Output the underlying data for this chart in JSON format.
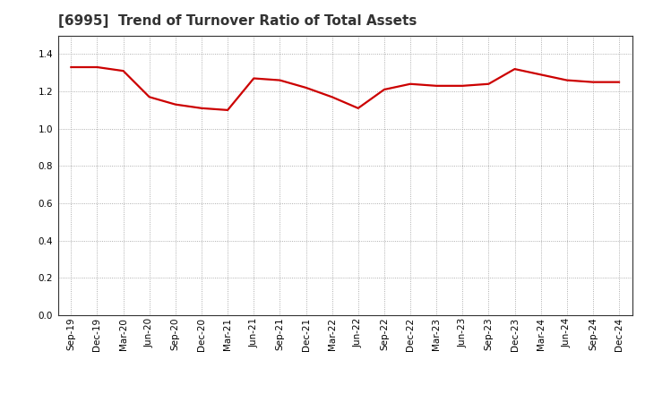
{
  "title": "[6995]  Trend of Turnover Ratio of Total Assets",
  "x_labels": [
    "Sep-19",
    "Dec-19",
    "Mar-20",
    "Jun-20",
    "Sep-20",
    "Dec-20",
    "Mar-21",
    "Jun-21",
    "Sep-21",
    "Dec-21",
    "Mar-22",
    "Jun-22",
    "Sep-22",
    "Dec-22",
    "Mar-23",
    "Jun-23",
    "Sep-23",
    "Dec-23",
    "Mar-24",
    "Jun-24",
    "Sep-24",
    "Dec-24"
  ],
  "values": [
    1.33,
    1.33,
    1.31,
    1.17,
    1.13,
    1.11,
    1.1,
    1.27,
    1.26,
    1.22,
    1.17,
    1.11,
    1.21,
    1.24,
    1.23,
    1.23,
    1.24,
    1.32,
    1.29,
    1.26,
    1.25,
    1.25
  ],
  "line_color": "#cc0000",
  "line_width": 1.6,
  "background_color": "#ffffff",
  "plot_bg_color": "#ffffff",
  "grid_color": "#999999",
  "ylim": [
    0.0,
    1.5
  ],
  "yticks": [
    0.0,
    0.2,
    0.4,
    0.6,
    0.8,
    1.0,
    1.2,
    1.4
  ],
  "title_fontsize": 11,
  "tick_fontsize": 7.5,
  "title_color": "#333333"
}
